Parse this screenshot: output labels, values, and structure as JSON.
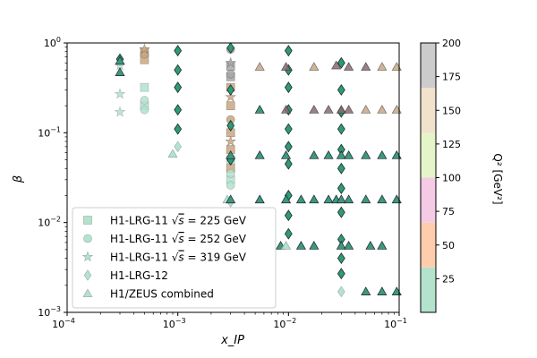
{
  "chart_data": {
    "type": "scatter",
    "title": "",
    "xlabel": "x_IP",
    "ylabel": "β",
    "x_scale": "log",
    "y_scale": "log",
    "xlim": [
      0.0001,
      0.1
    ],
    "ylim": [
      0.001,
      1.0
    ],
    "x_ticks": [
      {
        "value": 0.0001,
        "base": "10",
        "exp": "−4"
      },
      {
        "value": 0.001,
        "base": "10",
        "exp": "−3"
      },
      {
        "value": 0.01,
        "base": "10",
        "exp": "−2"
      },
      {
        "value": 0.1,
        "base": "10",
        "exp": "−1"
      }
    ],
    "y_ticks": [
      {
        "value": 0.001,
        "base": "10",
        "exp": "−3"
      },
      {
        "value": 0.01,
        "base": "10",
        "exp": "−2"
      },
      {
        "value": 0.1,
        "base": "10",
        "exp": "−1"
      },
      {
        "value": 1.0,
        "base": "10",
        "exp": "0"
      }
    ],
    "grid": false,
    "legend_position": "lower-left",
    "colorbar": {
      "label": "Q² [GeV²]",
      "range": [
        0,
        200
      ],
      "ticks": [
        25,
        50,
        75,
        100,
        125,
        150,
        175,
        200
      ],
      "bands": [
        {
          "from": 0,
          "to": 33.3,
          "color": "#b3e2cd"
        },
        {
          "from": 33.3,
          "to": 66.7,
          "color": "#fdcdac"
        },
        {
          "from": 66.7,
          "to": 100,
          "color": "#f4cae4"
        },
        {
          "from": 100,
          "to": 133.3,
          "color": "#e6f5c9"
        },
        {
          "from": 133.3,
          "to": 166.7,
          "color": "#f1e2cc"
        },
        {
          "from": 166.7,
          "to": 200,
          "color": "#cccccc"
        }
      ]
    },
    "series": [
      {
        "name": "H1-LRG-11 √s = 225 GeV",
        "label_main": "H1-LRG-11 ",
        "label_root": "√",
        "label_s": "s",
        "label_tail": " = 225 GeV",
        "marker": "square",
        "points": [
          [
            0.0005,
            0.32,
            5
          ],
          [
            0.0005,
            0.2,
            5
          ],
          [
            0.0005,
            0.65,
            150
          ],
          [
            0.0005,
            0.8,
            150
          ],
          [
            0.003,
            0.55,
            200
          ],
          [
            0.003,
            0.42,
            200
          ],
          [
            0.003,
            0.32,
            150
          ],
          [
            0.003,
            0.2,
            150
          ],
          [
            0.003,
            0.1,
            150
          ],
          [
            0.003,
            0.065,
            150
          ],
          [
            0.003,
            0.05,
            5
          ],
          [
            0.003,
            0.04,
            150
          ],
          [
            0.003,
            0.03,
            5
          ]
        ]
      },
      {
        "name": "H1-LRG-11 √s = 252 GeV",
        "label_main": "H1-LRG-11 ",
        "label_root": "√",
        "label_s": "s",
        "label_tail": " = 252 GeV",
        "marker": "circle",
        "points": [
          [
            0.0005,
            0.23,
            5
          ],
          [
            0.0005,
            0.18,
            5
          ],
          [
            0.0005,
            0.75,
            150
          ],
          [
            0.003,
            0.85,
            200
          ],
          [
            0.003,
            0.45,
            200
          ],
          [
            0.003,
            0.14,
            150
          ],
          [
            0.003,
            0.035,
            5
          ],
          [
            0.003,
            0.026,
            5
          ]
        ]
      },
      {
        "name": "H1-LRG-11 √s = 319 GeV",
        "label_main": "H1-LRG-11 ",
        "label_root": "√",
        "label_s": "s",
        "label_tail": " = 319 GeV",
        "marker": "star",
        "points": [
          [
            0.0003,
            0.17,
            5
          ],
          [
            0.0003,
            0.27,
            5
          ],
          [
            0.0003,
            0.56,
            5
          ],
          [
            0.0005,
            0.85,
            150
          ],
          [
            0.003,
            0.6,
            200
          ],
          [
            0.003,
            0.25,
            150
          ],
          [
            0.003,
            0.08,
            150
          ]
        ]
      },
      {
        "name": "H1-LRG-12",
        "marker": "diamond",
        "points": [
          [
            0.0003,
            0.66,
            8
          ],
          [
            0.001,
            0.82,
            8
          ],
          [
            0.001,
            0.5,
            8
          ],
          [
            0.001,
            0.32,
            8
          ],
          [
            0.001,
            0.18,
            8
          ],
          [
            0.001,
            0.11,
            8
          ],
          [
            0.001,
            0.07,
            3
          ],
          [
            0.003,
            0.88,
            8
          ],
          [
            0.003,
            0.3,
            8
          ],
          [
            0.003,
            0.12,
            8
          ],
          [
            0.003,
            0.05,
            8
          ],
          [
            0.003,
            0.017,
            3
          ],
          [
            0.01,
            0.82,
            8
          ],
          [
            0.01,
            0.5,
            8
          ],
          [
            0.01,
            0.32,
            8
          ],
          [
            0.01,
            0.18,
            8
          ],
          [
            0.01,
            0.11,
            8
          ],
          [
            0.01,
            0.07,
            8
          ],
          [
            0.01,
            0.045,
            8
          ],
          [
            0.01,
            0.02,
            8
          ],
          [
            0.01,
            0.012,
            8
          ],
          [
            0.01,
            0.0075,
            8
          ],
          [
            0.03,
            0.6,
            8
          ],
          [
            0.03,
            0.3,
            8
          ],
          [
            0.03,
            0.17,
            8
          ],
          [
            0.03,
            0.11,
            8
          ],
          [
            0.03,
            0.065,
            8
          ],
          [
            0.03,
            0.04,
            8
          ],
          [
            0.03,
            0.024,
            8
          ],
          [
            0.03,
            0.013,
            8
          ],
          [
            0.03,
            0.0065,
            8
          ],
          [
            0.03,
            0.004,
            8
          ],
          [
            0.03,
            0.0027,
            8
          ],
          [
            0.03,
            0.0017,
            3
          ]
        ]
      },
      {
        "name": "H1/ZEUS combined",
        "marker": "triangle",
        "points": [
          [
            0.0003,
            0.47,
            8
          ],
          [
            0.0003,
            0.63,
            8
          ],
          [
            0.0009,
            0.058,
            3
          ],
          [
            0.0028,
            0.018,
            3
          ],
          [
            0.003,
            0.056,
            8
          ],
          [
            0.003,
            0.018,
            8
          ],
          [
            0.0055,
            0.54,
            140
          ],
          [
            0.0055,
            0.18,
            8
          ],
          [
            0.0055,
            0.056,
            8
          ],
          [
            0.0055,
            0.018,
            8
          ],
          [
            0.0095,
            0.54,
            70
          ],
          [
            0.0095,
            0.18,
            70
          ],
          [
            0.0095,
            0.056,
            8
          ],
          [
            0.0095,
            0.018,
            8
          ],
          [
            0.0085,
            0.0055,
            8
          ],
          [
            0.0095,
            0.0055,
            3
          ],
          [
            0.013,
            0.018,
            8
          ],
          [
            0.013,
            0.0055,
            8
          ],
          [
            0.017,
            0.54,
            140
          ],
          [
            0.017,
            0.18,
            70
          ],
          [
            0.017,
            0.056,
            8
          ],
          [
            0.017,
            0.018,
            8
          ],
          [
            0.017,
            0.0055,
            8
          ],
          [
            0.023,
            0.18,
            70
          ],
          [
            0.023,
            0.056,
            8
          ],
          [
            0.023,
            0.018,
            8
          ],
          [
            0.027,
            0.56,
            70
          ],
          [
            0.027,
            0.018,
            8
          ],
          [
            0.03,
            0.056,
            8
          ],
          [
            0.03,
            0.18,
            70
          ],
          [
            0.03,
            0.018,
            8
          ],
          [
            0.03,
            0.0055,
            8
          ],
          [
            0.035,
            0.54,
            70
          ],
          [
            0.035,
            0.18,
            70
          ],
          [
            0.035,
            0.056,
            8
          ],
          [
            0.035,
            0.018,
            8
          ],
          [
            0.035,
            0.0055,
            8
          ],
          [
            0.05,
            0.54,
            70
          ],
          [
            0.05,
            0.18,
            140
          ],
          [
            0.05,
            0.056,
            8
          ],
          [
            0.05,
            0.018,
            8
          ],
          [
            0.05,
            0.0017,
            8
          ],
          [
            0.055,
            0.0055,
            8
          ],
          [
            0.07,
            0.54,
            140
          ],
          [
            0.07,
            0.18,
            140
          ],
          [
            0.07,
            0.056,
            8
          ],
          [
            0.07,
            0.018,
            8
          ],
          [
            0.07,
            0.0055,
            8
          ],
          [
            0.07,
            0.0017,
            8
          ],
          [
            0.095,
            0.54,
            140
          ],
          [
            0.095,
            0.18,
            140
          ],
          [
            0.095,
            0.056,
            8
          ],
          [
            0.095,
            0.018,
            8
          ],
          [
            0.095,
            0.0017,
            8
          ]
        ]
      }
    ]
  }
}
